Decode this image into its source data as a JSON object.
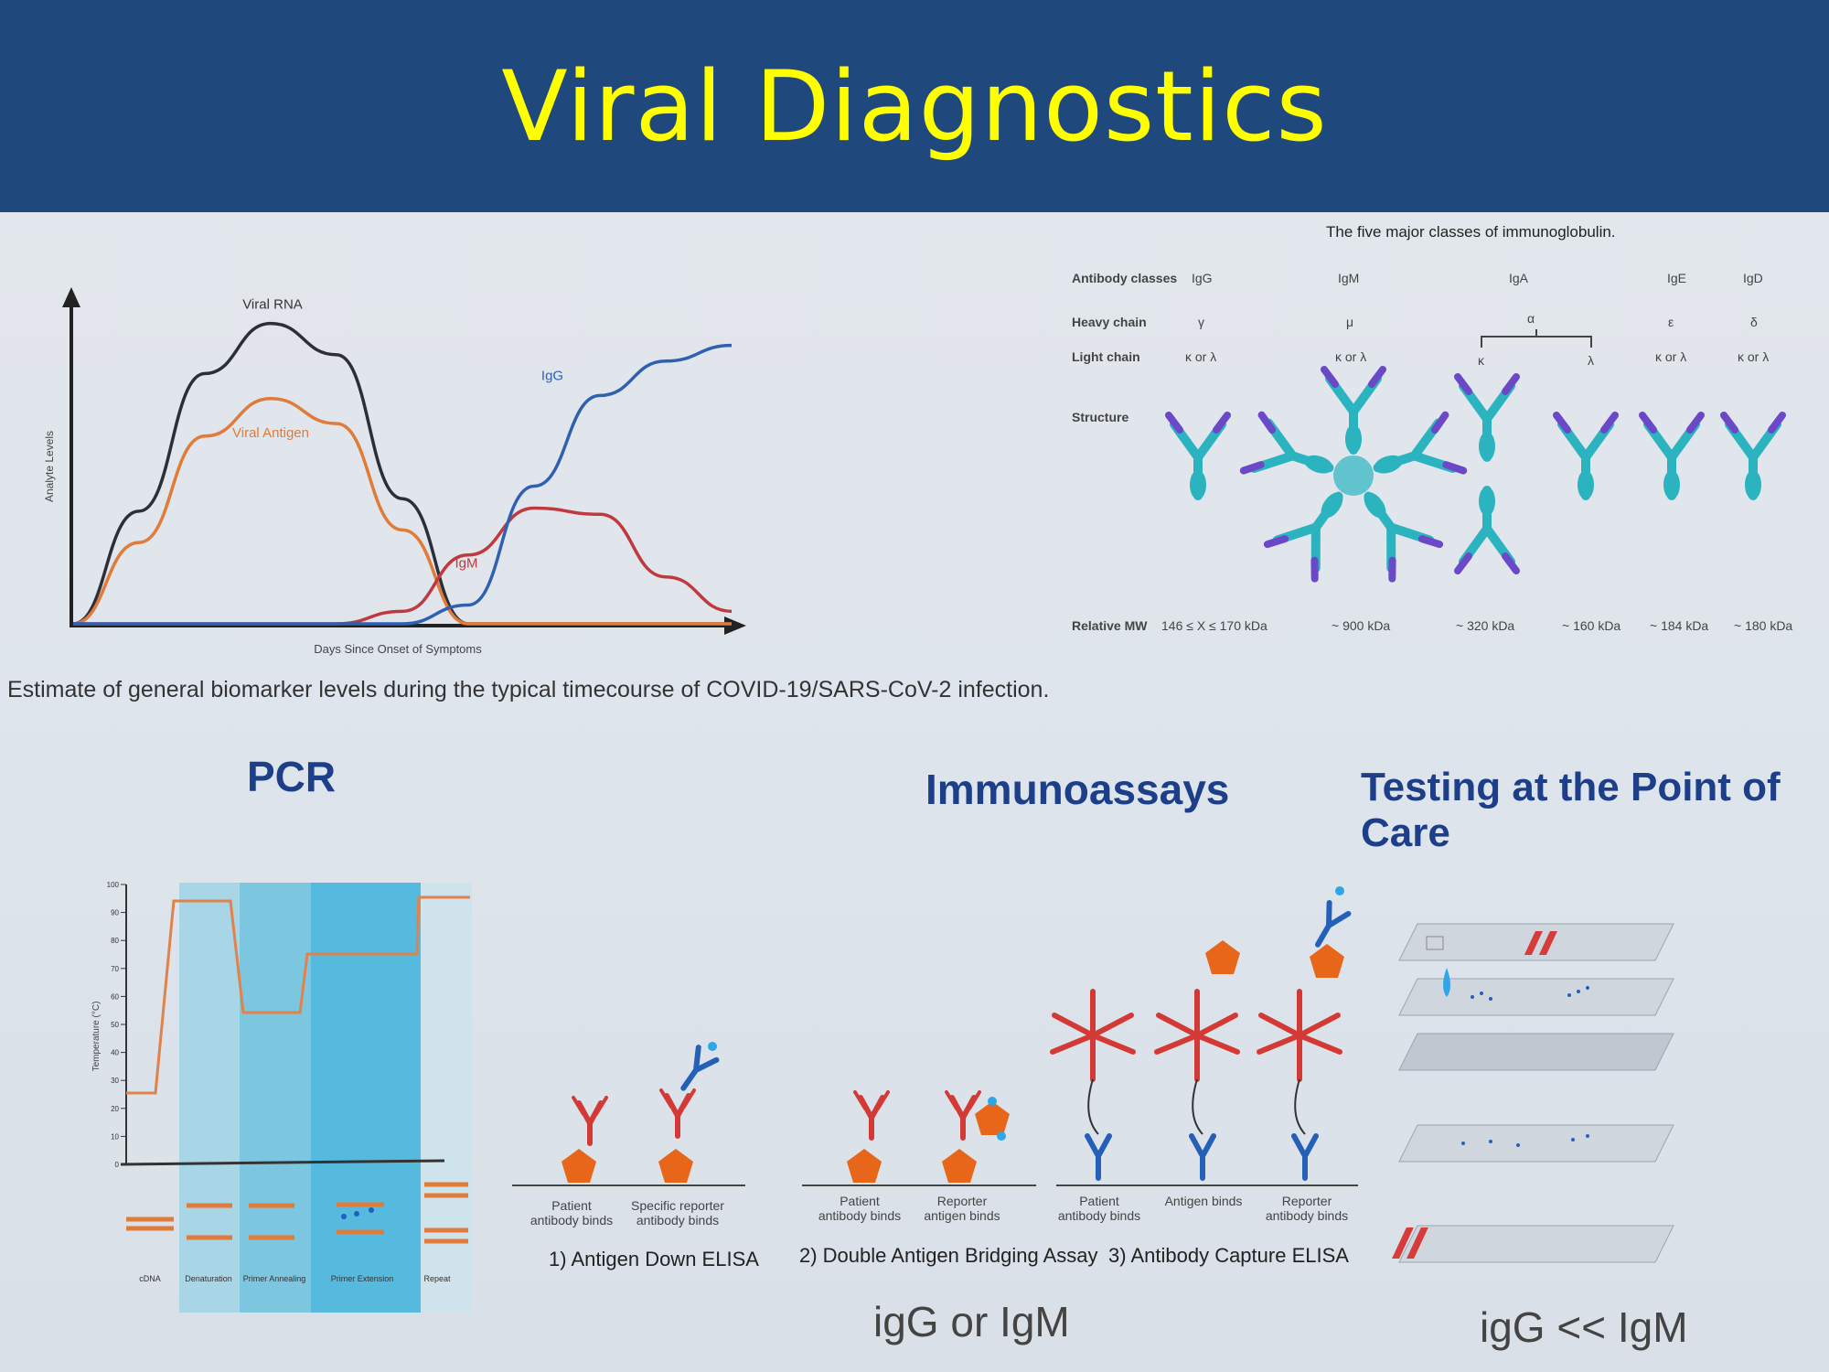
{
  "slide": {
    "title": "Viral Diagnostics"
  },
  "chart_data": {
    "type": "line",
    "title": "",
    "xlabel": "Days Since Onset of Symptoms",
    "ylabel": "Analyte Levels",
    "x": [
      0,
      1,
      2,
      3,
      4,
      5,
      6,
      7,
      8,
      9,
      10
    ],
    "series": [
      {
        "name": "Viral RNA",
        "color": "#2e2e3a",
        "values": [
          0,
          3.6,
          8.0,
          9.6,
          8.6,
          4.0,
          0,
          0,
          0,
          0,
          0
        ]
      },
      {
        "name": "Viral Antigen",
        "color": "#e07b3a",
        "values": [
          0,
          2.6,
          6.0,
          7.2,
          6.4,
          3.0,
          0,
          0,
          0,
          0,
          0
        ]
      },
      {
        "name": "IgM",
        "color": "#c0393f",
        "values": [
          0,
          0,
          0,
          0,
          0,
          0.4,
          2.2,
          3.7,
          3.5,
          1.5,
          0.4
        ]
      },
      {
        "name": "IgG",
        "color": "#2f61b0",
        "values": [
          0,
          0,
          0,
          0,
          0,
          0,
          0.6,
          4.4,
          7.3,
          8.4,
          8.9
        ]
      }
    ],
    "ylim": [
      0,
      10
    ],
    "caption": "Estimate of general biomarker levels during the typical timecourse of COVID-19/SARS-CoV-2 infection."
  },
  "immunoglobulin_table": {
    "title": "The five major classes of immunoglobulin.",
    "row_labels": [
      "Antibody classes",
      "Heavy chain",
      "Light chain",
      "Structure",
      "Relative MW"
    ],
    "classes": [
      {
        "name": "IgG",
        "heavy": "γ",
        "light": "κ or λ",
        "mw": "146 ≤ X ≤ 170 kDa"
      },
      {
        "name": "IgM",
        "heavy": "μ",
        "light": "κ or λ",
        "mw": "~ 900 kDa"
      },
      {
        "name": "IgA",
        "heavy": "α",
        "light": "κ",
        "mw": "~ 320 kDa"
      },
      {
        "name": "",
        "heavy": "",
        "light": "λ",
        "mw": "~ 160 kDa"
      },
      {
        "name": "IgE",
        "heavy": "ε",
        "light": "κ or λ",
        "mw": "~ 184 kDa"
      },
      {
        "name": "IgD",
        "heavy": "δ",
        "light": "κ or λ",
        "mw": "~ 180 kDa"
      }
    ],
    "colors": {
      "structure_main": "#2bb3c0",
      "structure_accent": "#6b48c8"
    }
  },
  "pcr": {
    "heading": "PCR",
    "ylabel": "Temperature (°C)",
    "y_ticks": [
      "100",
      "90",
      "80",
      "70",
      "60",
      "50",
      "40",
      "30",
      "20",
      "10",
      "0"
    ],
    "step_labels": [
      "cDNA",
      "Denaturation",
      "Primer Annealing",
      "Primer Extension",
      "Repeat"
    ]
  },
  "immunoassays": {
    "heading": "Immunoassays",
    "assays": [
      {
        "name": "1) Antigen Down ELISA",
        "steps": [
          "Patient antibody binds",
          "Specific reporter antibody binds"
        ]
      },
      {
        "name": "2) Double Antigen Bridging Assay",
        "steps": [
          "Patient antibody binds",
          "Reporter antigen binds"
        ]
      },
      {
        "name": "3) Antibody Capture ELISA",
        "steps": [
          "Patient antibody binds",
          "Antigen binds",
          "Reporter antibody binds"
        ]
      }
    ],
    "note": "igG or IgM"
  },
  "poc": {
    "heading": "Testing at the Point of Care",
    "note": "igG << IgM"
  }
}
